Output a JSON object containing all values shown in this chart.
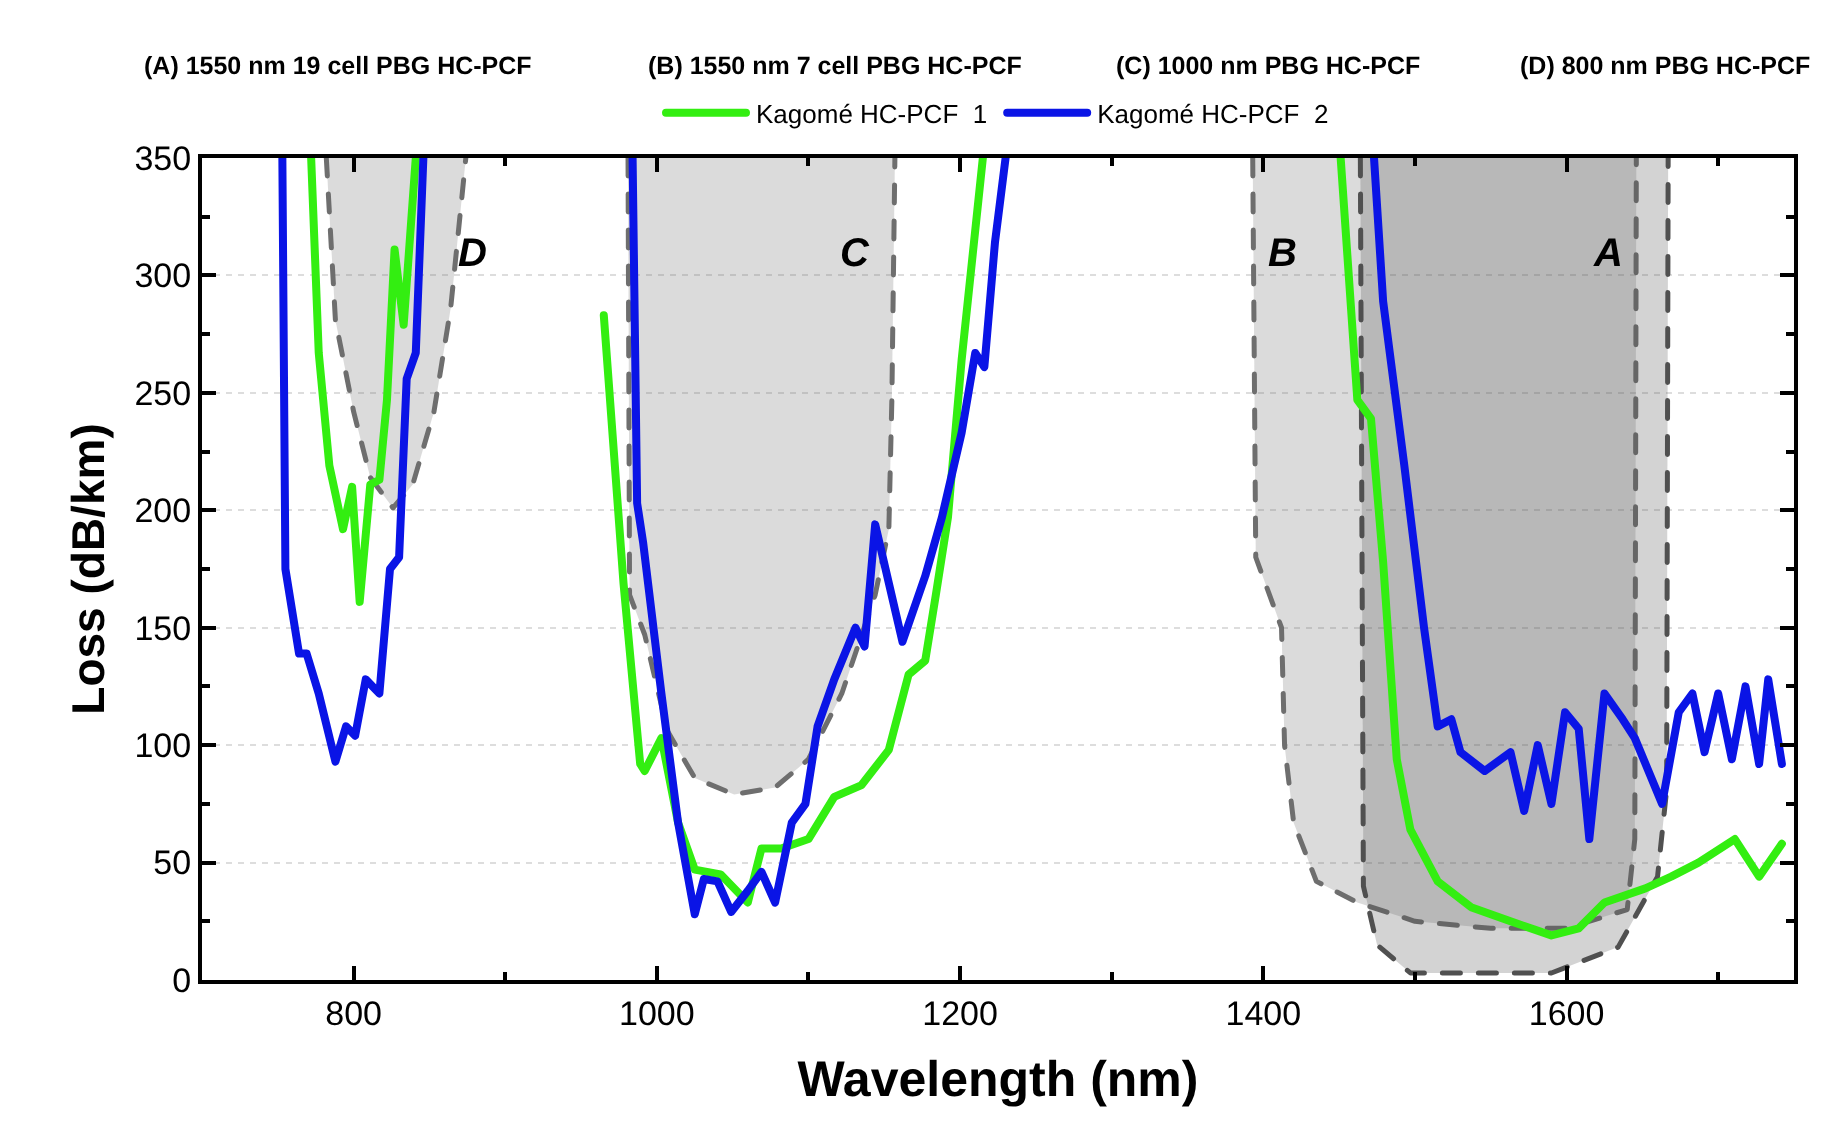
{
  "chart_data": {
    "type": "line",
    "xlabel": "Wavelength (nm)",
    "ylabel": "Loss (dB/km)",
    "xlim": [
      700,
      1750
    ],
    "xticks": [
      800,
      1000,
      1200,
      1400,
      1600
    ],
    "ylim": [
      0,
      350
    ],
    "yticks": [
      0,
      50,
      100,
      150,
      200,
      250,
      300,
      350
    ],
    "grid": "y",
    "legend": "top",
    "marker": "none",
    "annotations": [
      "(A) 1550 nm 19 cell PBG HC-PCF",
      "(B) 1550 nm 7 cell PBG HC-PCF",
      "(C) 1000 nm PBG HC-PCF",
      "(D) 800 nm PBG HC-PCF",
      "D",
      "C",
      "B",
      "A"
    ],
    "series": [
      {
        "color": "#6e6e6e",
        "line_style": "dashed",
        "x": [
          782,
          788,
          800,
          811,
          826,
          839,
          853,
          864,
          874
        ],
        "values": [
          350,
          281,
          242,
          214,
          201,
          211,
          242,
          286,
          350
        ],
        "lower": [
          350,
          281,
          242,
          214,
          201,
          211,
          242,
          286,
          350
        ],
        "upper": [
          350,
          350,
          350,
          350,
          350,
          350,
          350,
          350,
          350
        ]
      },
      {
        "color": "#6e6e6e",
        "line_style": "dashed",
        "x": [
          981,
          982,
          992,
          1007,
          1025,
          1051,
          1078,
          1100,
          1122,
          1144,
          1153,
          1155,
          1157
        ],
        "values": [
          350,
          164,
          147,
          106,
          86,
          79,
          82,
          94,
          122,
          164,
          192,
          247,
          350
        ],
        "lower": [
          350,
          164,
          147,
          106,
          86,
          79,
          82,
          94,
          122,
          164,
          192,
          247,
          350
        ],
        "upper": [
          350,
          350,
          350,
          350,
          350,
          350,
          350,
          350,
          350,
          350,
          350,
          350,
          350
        ]
      },
      {
        "color": "#6e6e6e",
        "line_style": "dashed",
        "x": [
          1393,
          1395,
          1412,
          1414,
          1420,
          1435,
          1462,
          1500,
          1550,
          1600,
          1640,
          1645,
          1646
        ],
        "values": [
          350,
          180,
          150,
          100,
          67,
          42,
          33,
          25,
          22,
          22,
          30,
          60,
          350
        ],
        "lower": [
          350,
          180,
          150,
          100,
          67,
          42,
          33,
          25,
          22,
          22,
          30,
          60,
          350
        ],
        "upper": [
          350,
          350,
          350,
          350,
          350,
          350,
          350,
          350,
          350,
          350,
          350,
          350,
          350
        ]
      },
      {
        "color": "#505050",
        "line_style": "dashed",
        "x": [
          1464,
          1466,
          1475,
          1497,
          1530,
          1590,
          1634,
          1660,
          1666,
          1667
        ],
        "values": [
          350,
          40,
          15,
          3,
          3,
          3,
          14,
          44,
          81,
          350
        ],
        "lower": [
          350,
          40,
          15,
          3,
          3,
          3,
          14,
          44,
          81,
          350
        ],
        "upper": [
          350,
          350,
          350,
          350,
          350,
          350,
          350,
          350,
          350,
          350
        ]
      },
      {
        "name": "Kagomé HC-PCF  1",
        "color": "#33ee11",
        "line_style": "solid",
        "x": [
          772,
          777,
          784,
          793,
          799,
          804,
          811,
          817,
          822,
          827,
          833,
          841,
          null,
          965,
          978,
          989,
          992,
          1003,
          1014,
          1025,
          1042,
          1060,
          1069,
          1082,
          1100,
          1117,
          1135,
          1153,
          1166,
          1177,
          1184,
          1192,
          1201,
          1215,
          null,
          1451,
          1462,
          1471,
          1479,
          1488,
          1497,
          1515,
          1537,
          1563,
          1590,
          1608,
          1625,
          1652,
          1669,
          1687,
          1711,
          1727,
          1742
        ],
        "values": [
          350,
          267,
          219,
          192,
          210,
          161,
          211,
          213,
          247,
          311,
          279,
          350,
          null,
          283,
          169,
          92,
          89,
          103,
          67,
          47,
          45,
          33,
          56,
          56,
          60,
          78,
          83,
          98,
          130,
          136,
          164,
          197,
          264,
          350,
          null,
          350,
          247,
          239,
          178,
          94,
          64,
          42,
          31,
          25,
          19,
          22,
          33,
          39,
          44,
          50,
          60,
          44,
          58
        ]
      },
      {
        "name": "Kagomé HC-PCF  2",
        "color": "#0a14e6",
        "line_style": "solid",
        "x": [
          753,
          755,
          764,
          769,
          777,
          788,
          795,
          801,
          808,
          817,
          824,
          830,
          835,
          841,
          846,
          null,
          984,
          987,
          991,
          1003,
          1014,
          1025,
          1031,
          1040,
          1049,
          1060,
          1069,
          1078,
          1089,
          1098,
          1106,
          1117,
          1131,
          1137,
          1144,
          1153,
          1162,
          1177,
          1188,
          1201,
          1210,
          1216,
          1223,
          1230,
          null,
          1473,
          1479,
          1493,
          1506,
          1515,
          1524,
          1530,
          1546,
          1563,
          1572,
          1581,
          1590,
          1599,
          1608,
          1615,
          1625,
          1637,
          1645,
          1663,
          1674,
          1683,
          1691,
          1700,
          1709,
          1718,
          1727,
          1733,
          1742
        ],
        "values": [
          350,
          175,
          139,
          139,
          122,
          93,
          108,
          104,
          128,
          122,
          175,
          180,
          256,
          267,
          350,
          null,
          350,
          203,
          186,
          122,
          67,
          28,
          43,
          42,
          29,
          38,
          46,
          33,
          67,
          75,
          108,
          128,
          150,
          142,
          194,
          169,
          144,
          172,
          197,
          233,
          267,
          261,
          314,
          350,
          null,
          350,
          289,
          219,
          150,
          108,
          111,
          97,
          89,
          97,
          72,
          100,
          75,
          114,
          107,
          60,
          122,
          111,
          103,
          75,
          114,
          122,
          97,
          122,
          94,
          125,
          92,
          128,
          92
        ]
      }
    ]
  }
}
